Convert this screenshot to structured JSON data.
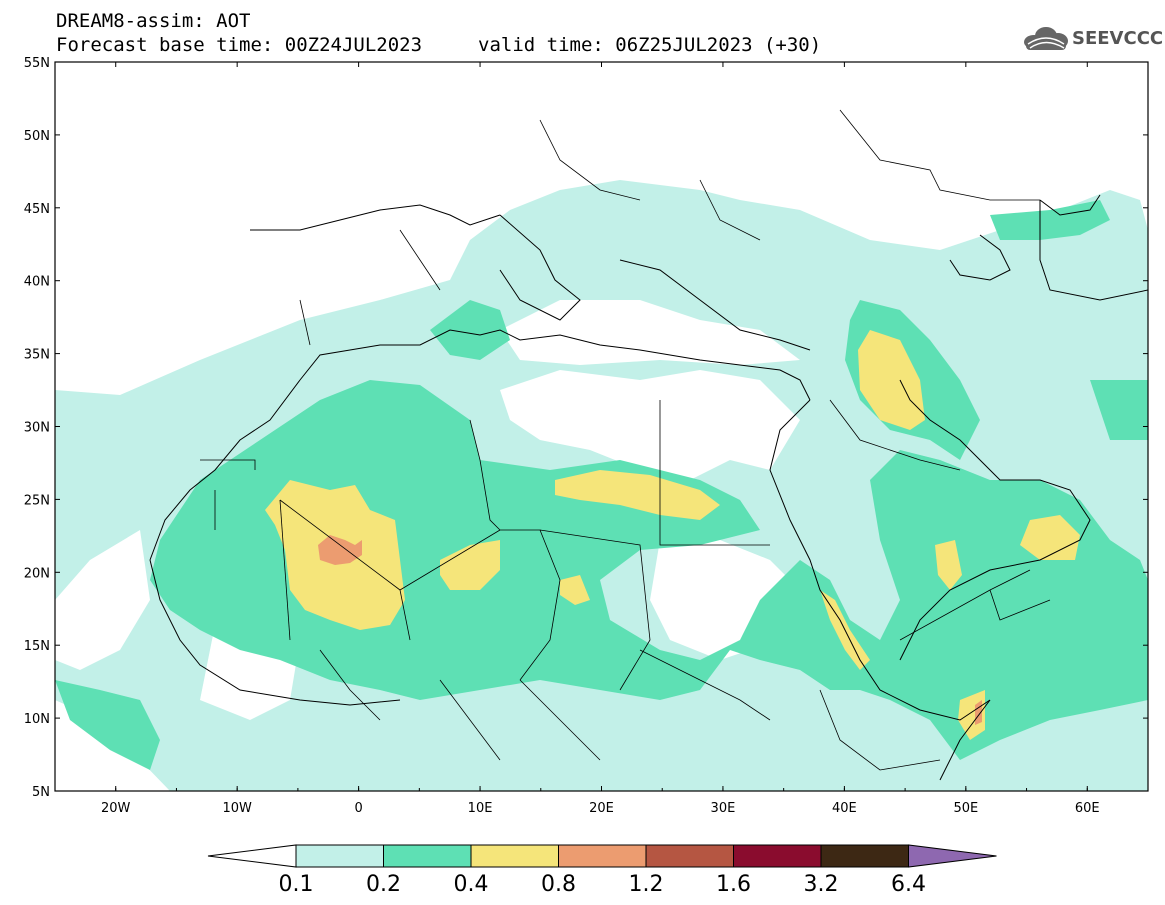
{
  "header": {
    "title": "DREAM8-assim: AOT",
    "base_time": "Forecast base time: 00Z24JUL2023",
    "valid_time": "valid time: 06Z25JUL2023 (+30)"
  },
  "logo": {
    "text": "SEEVCCC"
  },
  "map": {
    "lon_range": [
      -25,
      65
    ],
    "lat_range": [
      5,
      55
    ],
    "lat_labels": [
      "55N",
      "50N",
      "45N",
      "40N",
      "35N",
      "30N",
      "25N",
      "20N",
      "15N",
      "10N",
      "5N"
    ],
    "lon_labels": [
      "20W",
      "10W",
      "0",
      "10E",
      "20E",
      "30E",
      "40E",
      "50E",
      "60E"
    ]
  },
  "colorbar": {
    "labels": [
      "0.1",
      "0.2",
      "0.4",
      "0.8",
      "1.2",
      "1.6",
      "3.2",
      "6.4"
    ],
    "colors": [
      "#ffffff",
      "#c2f0e8",
      "#5ee0b4",
      "#f5e57a",
      "#ec9c70",
      "#b55642",
      "#8a0c2e",
      "#3d2814",
      "#8e68b0"
    ]
  }
}
